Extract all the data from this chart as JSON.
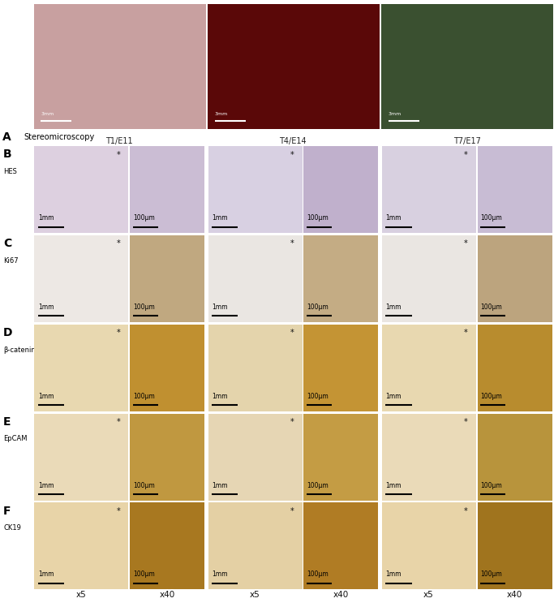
{
  "panel_A_label": "A",
  "panel_A_subtitle": "Stereomicroscopy",
  "panel_A_col_labels": [
    "T1/E11",
    "T4/E14",
    "T7/E17"
  ],
  "panel_rows": [
    "B",
    "C",
    "D",
    "E",
    "F"
  ],
  "panel_row_labels": [
    "HES",
    "Ki67",
    "β-catenin",
    "EpCAM",
    "CK19"
  ],
  "col_group_labels": [
    "T1/E11",
    "T4/E14",
    "T7/E17"
  ],
  "scale_labels_x5": "1mm",
  "scale_labels_x40": "100μm",
  "bg_color": "#ffffff",
  "font_size_panel": 10,
  "font_size_label": 7,
  "font_size_scale": 5.5,
  "font_size_mag": 7.5,
  "panelA_colors": [
    "#c8a0a0",
    "#5a0808",
    "#3a5030"
  ],
  "row_x5_colors": [
    [
      "#ddd0e0",
      "#d8d0e2",
      "#d8d0e0"
    ],
    [
      "#ede8e4",
      "#eae6e2",
      "#eae6e2"
    ],
    [
      "#e8d8b0",
      "#e4d4ac",
      "#e8d8b0"
    ],
    [
      "#eadab8",
      "#e6d6b4",
      "#eadab8"
    ],
    [
      "#e8d4a8",
      "#e4d0a4",
      "#e8d4a8"
    ]
  ],
  "row_x40_colors": [
    [
      "#cbbdd4",
      "#c0b0cc",
      "#c8bcd4"
    ],
    [
      "#c0a880",
      "#c4ac84",
      "#bca47e"
    ],
    [
      "#c09030",
      "#c49434",
      "#b88c2e"
    ],
    [
      "#c09840",
      "#c49c44",
      "#b8943c"
    ],
    [
      "#a87820",
      "#b07c24",
      "#a0741e"
    ]
  ]
}
